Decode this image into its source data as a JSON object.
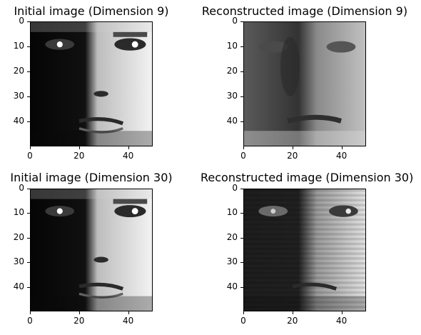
{
  "panels": [
    {
      "title": "Initial image (Dimension 9)",
      "style": "initial"
    },
    {
      "title": "Reconstructed image (Dimension 9)",
      "style": "reconstructed9"
    },
    {
      "title": "Initial image (Dimension 30)",
      "style": "initial"
    },
    {
      "title": "Reconstructed image (Dimension 30)",
      "style": "reconstructed30"
    }
  ],
  "y_ticks": [
    "0",
    "10",
    "20",
    "30",
    "40"
  ],
  "x_ticks": [
    "0",
    "20",
    "40"
  ],
  "colors": {
    "background": "#ffffff",
    "axis": "#000000"
  }
}
